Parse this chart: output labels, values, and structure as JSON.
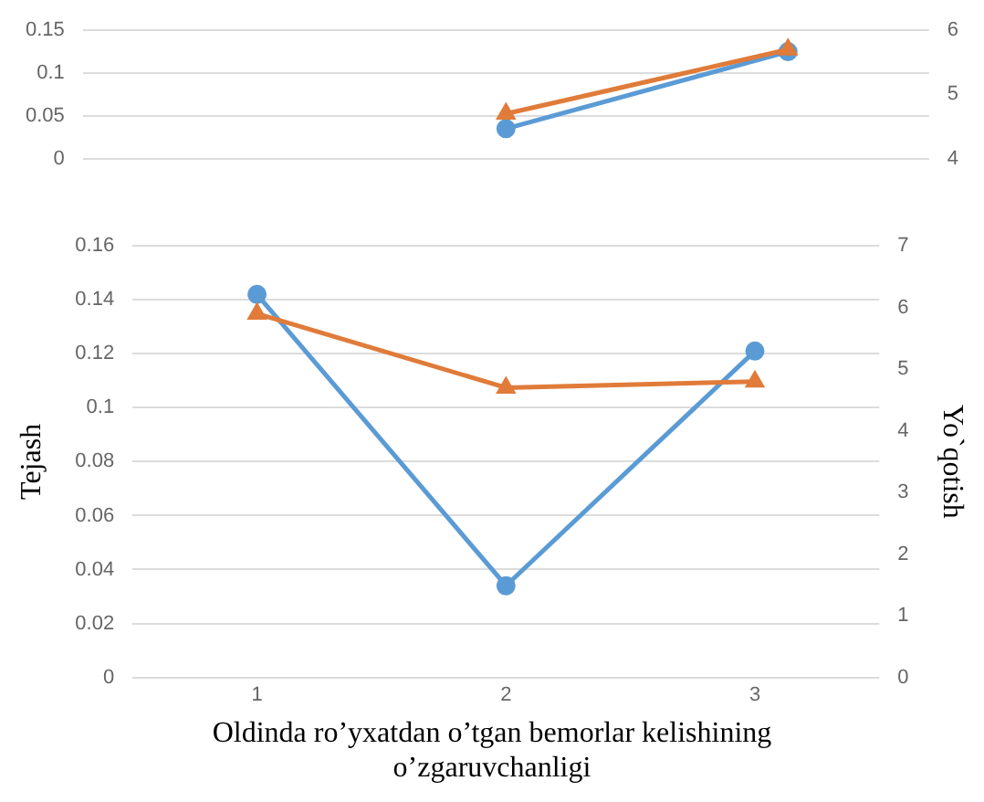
{
  "chart_data": [
    {
      "type": "line",
      "categories": [
        null,
        null,
        null
      ],
      "ylim": [
        0,
        0.15
      ],
      "yticks": [
        0,
        0.05,
        0.1,
        0.15
      ],
      "y2lim": [
        4,
        6
      ],
      "y2ticks": [
        4,
        5,
        6
      ],
      "grid": "y",
      "legend": false,
      "series": [
        {
          "color": "#5b9bd5",
          "values": [
            null,
            0.035,
            0.125
          ],
          "marker": "circle"
        },
        {
          "color": "#e07b39",
          "values": [
            null,
            4.7,
            5.7
          ],
          "axis": "y2",
          "marker": "triangle"
        }
      ]
    },
    {
      "type": "line",
      "categories": [
        "1",
        "2",
        "3"
      ],
      "xlabel": "Oldinda ro’yxatdan o’tgan bemorlar kelishining o’zgaruvchanligi",
      "ylabel": "Tejash",
      "y2label": "Yo`qotish",
      "ylim": [
        0,
        0.16
      ],
      "yticks": [
        0,
        0.02,
        0.04,
        0.06,
        0.08,
        0.1,
        0.12,
        0.14,
        0.16
      ],
      "y2lim": [
        0,
        7
      ],
      "y2ticks": [
        0,
        1,
        2,
        3,
        4,
        5,
        6,
        7
      ],
      "grid": "y",
      "legend": false,
      "series": [
        {
          "color": "#5b9bd5",
          "values": [
            0.142,
            0.034,
            0.121
          ],
          "marker": "circle"
        },
        {
          "color": "#e07b39",
          "values": [
            5.9,
            4.7,
            4.8
          ],
          "axis": "y2",
          "marker": "triangle"
        }
      ]
    }
  ]
}
